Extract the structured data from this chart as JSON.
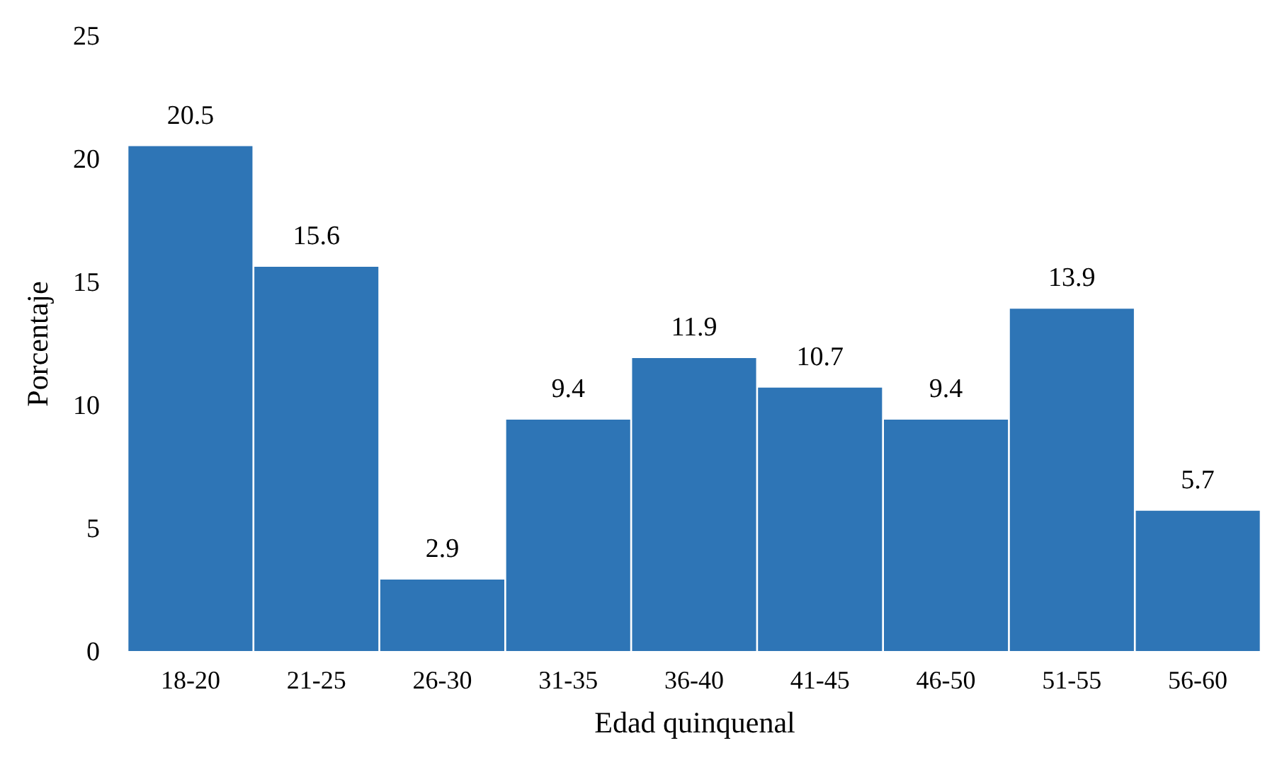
{
  "chart_data": {
    "type": "bar",
    "xlabel": "Edad quinquenal",
    "ylabel": "Porcentaje",
    "categories": [
      "18-20",
      "21-25",
      "26-30",
      "31-35",
      "36-40",
      "41-45",
      "46-50",
      "51-55",
      "56-60"
    ],
    "values": [
      20.5,
      15.6,
      2.9,
      9.4,
      11.9,
      10.7,
      9.4,
      13.9,
      5.7
    ],
    "color": "#2e75b6",
    "ylim": [
      0,
      25
    ],
    "yticks": [
      0,
      5,
      10,
      15,
      20,
      25
    ],
    "grid": false,
    "data_labels": true
  }
}
